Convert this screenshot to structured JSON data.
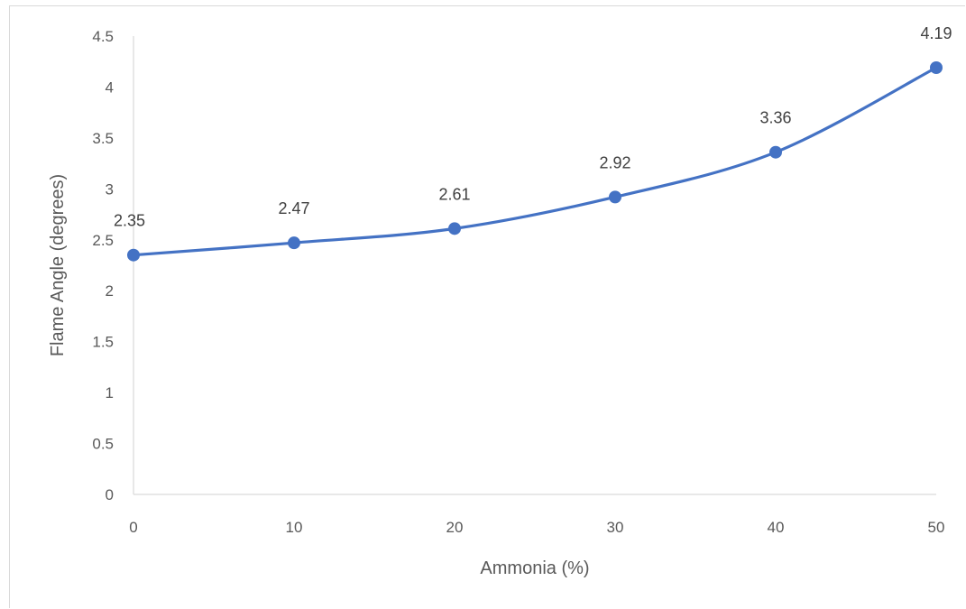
{
  "chart_data": {
    "type": "line",
    "x": [
      0,
      10,
      20,
      30,
      40,
      50
    ],
    "series": [
      {
        "values": [
          2.35,
          2.47,
          2.61,
          2.92,
          3.36,
          4.19
        ],
        "data_labels": [
          "2.35",
          "2.47",
          "2.61",
          "2.92",
          "3.36",
          "4.19"
        ],
        "color": "#4472C4",
        "smoothed": true,
        "markers": true
      }
    ],
    "xlabel": "Ammonia (%)",
    "ylabel": "Flame Angle (degrees)",
    "xlim": [
      0,
      50
    ],
    "ylim": [
      0,
      4.5
    ],
    "x_ticks": [
      "0",
      "10",
      "20",
      "30",
      "40",
      "50"
    ],
    "y_ticks": [
      "0",
      "0.5",
      "1",
      "1.5",
      "2",
      "2.5",
      "3",
      "3.5",
      "4",
      "4.5"
    ],
    "grid": false,
    "legend": "none"
  }
}
